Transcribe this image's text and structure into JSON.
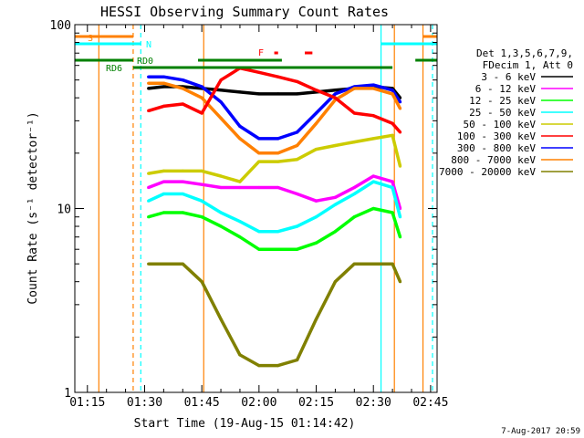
{
  "chart_data": {
    "type": "line",
    "title": "HESSI Observing Summary Count Rates",
    "xlabel": "Start Time (19-Aug-15 01:14:42)",
    "ylabel": "Count Rate (s⁻¹ detector⁻¹)",
    "x_ticks": [
      "01:15",
      "01:30",
      "01:45",
      "02:00",
      "02:15",
      "02:30",
      "02:45"
    ],
    "x_tick_minutes": [
      0,
      15,
      30,
      45,
      60,
      75,
      90
    ],
    "xlim_minutes": [
      -3.3,
      91.7
    ],
    "y_scale": "log",
    "ylim": [
      1,
      100
    ],
    "y_ticks": [
      1,
      10,
      100
    ],
    "legend": {
      "position": "right",
      "header": [
        "Det 1,3,5,6,7,9,",
        "FDecim 1, Att 0"
      ],
      "entries": [
        {
          "label": "3 - 6 keV",
          "color": "#000000"
        },
        {
          "label": "6 - 12 keV",
          "color": "#ff00ff"
        },
        {
          "label": "12 - 25 keV",
          "color": "#00ff00"
        },
        {
          "label": "25 - 50 keV",
          "color": "#00ffff"
        },
        {
          "label": "50 - 100 keV",
          "color": "#cccc00"
        },
        {
          "label": "100 - 300 keV",
          "color": "#ff0000"
        },
        {
          "label": "300 - 800 keV",
          "color": "#0000ff"
        },
        {
          "label": "800 - 7000 keV",
          "color": "#ff8000"
        },
        {
          "label": "7000 - 20000 keV",
          "color": "#808000"
        }
      ]
    },
    "series": [
      {
        "name": "3 - 6 keV",
        "color": "#000000",
        "x": [
          16,
          20,
          25,
          30,
          35,
          40,
          45,
          50,
          55,
          60,
          65,
          70,
          75,
          80,
          82
        ],
        "y": [
          45,
          46,
          46,
          45,
          44,
          43,
          42,
          42,
          42,
          43,
          44,
          45,
          46,
          45,
          40
        ]
      },
      {
        "name": "300 - 800 keV",
        "color": "#0000ff",
        "x": [
          16,
          20,
          25,
          30,
          35,
          40,
          45,
          50,
          55,
          60,
          65,
          70,
          75,
          80,
          82
        ],
        "y": [
          52,
          52,
          50,
          46,
          38,
          28,
          24,
          24,
          26,
          33,
          42,
          46,
          47,
          44,
          38
        ]
      },
      {
        "name": "800 - 7000 keV",
        "color": "#ff8000",
        "x": [
          16,
          20,
          25,
          30,
          35,
          40,
          45,
          50,
          55,
          60,
          65,
          70,
          75,
          80,
          82
        ],
        "y": [
          48,
          48,
          45,
          40,
          31,
          24,
          20,
          20,
          22,
          29,
          39,
          45,
          45,
          42,
          35
        ]
      },
      {
        "name": "100 - 300 keV",
        "color": "#ff0000",
        "x": [
          16,
          20,
          25,
          30,
          35,
          40,
          45,
          50,
          55,
          60,
          65,
          70,
          75,
          80,
          82
        ],
        "y": [
          34,
          36,
          37,
          33,
          50,
          58,
          55,
          52,
          49,
          44,
          40,
          33,
          32,
          29,
          26
        ]
      },
      {
        "name": "50 - 100 keV",
        "color": "#cccc00",
        "x": [
          16,
          20,
          25,
          30,
          35,
          40,
          45,
          50,
          55,
          60,
          65,
          70,
          75,
          80,
          82
        ],
        "y": [
          15.5,
          16,
          16,
          16,
          15,
          14,
          18,
          18,
          18.5,
          21,
          22,
          23,
          24,
          25,
          17
        ]
      },
      {
        "name": "6 - 12 keV",
        "color": "#ff00ff",
        "x": [
          16,
          20,
          25,
          30,
          35,
          40,
          45,
          50,
          55,
          60,
          65,
          70,
          75,
          80,
          82
        ],
        "y": [
          13,
          14,
          14,
          13.5,
          13,
          13,
          13,
          13,
          12,
          11,
          11.5,
          13,
          15,
          14,
          10
        ]
      },
      {
        "name": "25 - 50 keV",
        "color": "#00ffff",
        "x": [
          16,
          20,
          25,
          30,
          35,
          40,
          45,
          50,
          55,
          60,
          65,
          70,
          75,
          80,
          82
        ],
        "y": [
          11,
          12,
          12,
          11,
          9.5,
          8.5,
          7.5,
          7.5,
          8,
          9,
          10.5,
          12,
          14,
          13,
          9
        ]
      },
      {
        "name": "12 - 25 keV",
        "color": "#00ff00",
        "x": [
          16,
          20,
          25,
          30,
          35,
          40,
          45,
          50,
          55,
          60,
          65,
          70,
          75,
          80,
          82
        ],
        "y": [
          9,
          9.5,
          9.5,
          9,
          8,
          7,
          6,
          6,
          6,
          6.5,
          7.5,
          9,
          10,
          9.5,
          7
        ]
      },
      {
        "name": "7000 - 20000 keV",
        "color": "#808000",
        "x": [
          16,
          20,
          25,
          30,
          35,
          40,
          45,
          50,
          55,
          60,
          65,
          70,
          75,
          80,
          82
        ],
        "y": [
          5,
          5,
          5,
          4,
          2.5,
          1.6,
          1.4,
          1.4,
          1.5,
          2.5,
          4,
          5,
          5,
          5,
          4
        ]
      }
    ],
    "flags": [
      {
        "label": "S",
        "color": "#ff8000",
        "segments": [
          [
            -3.3,
            12
          ],
          [
            88,
            91.7
          ]
        ]
      },
      {
        "label": "N",
        "color": "#00ffff",
        "segments": [
          [
            -3.3,
            14
          ],
          [
            77,
            91.7
          ]
        ]
      },
      {
        "label": "RD0",
        "color": "#008000",
        "segments": [
          [
            -3.3,
            12
          ],
          [
            29,
            51
          ],
          [
            86,
            91.7
          ]
        ]
      },
      {
        "label": "RD6",
        "color": "#008000",
        "segments": [
          [
            12,
            80
          ]
        ]
      },
      {
        "label": "F",
        "color": "#ff0000",
        "segments": [
          [
            49,
            50
          ],
          [
            57,
            59
          ]
        ]
      }
    ],
    "vertical_lines": [
      {
        "x": 3,
        "color": "#ff8000",
        "style": "solid"
      },
      {
        "x": 12,
        "color": "#ff8000",
        "style": "dashed"
      },
      {
        "x": 14,
        "color": "#00ffff",
        "style": "dashed"
      },
      {
        "x": 30.5,
        "color": "#ff8000",
        "style": "solid"
      },
      {
        "x": 77,
        "color": "#00ffff",
        "style": "solid"
      },
      {
        "x": 80.5,
        "color": "#ff8000",
        "style": "solid"
      },
      {
        "x": 88,
        "color": "#ff8000",
        "style": "solid"
      },
      {
        "x": 90.5,
        "color": "#00ffff",
        "style": "dashed"
      }
    ]
  },
  "footer_date": "7-Aug-2017 20:59"
}
